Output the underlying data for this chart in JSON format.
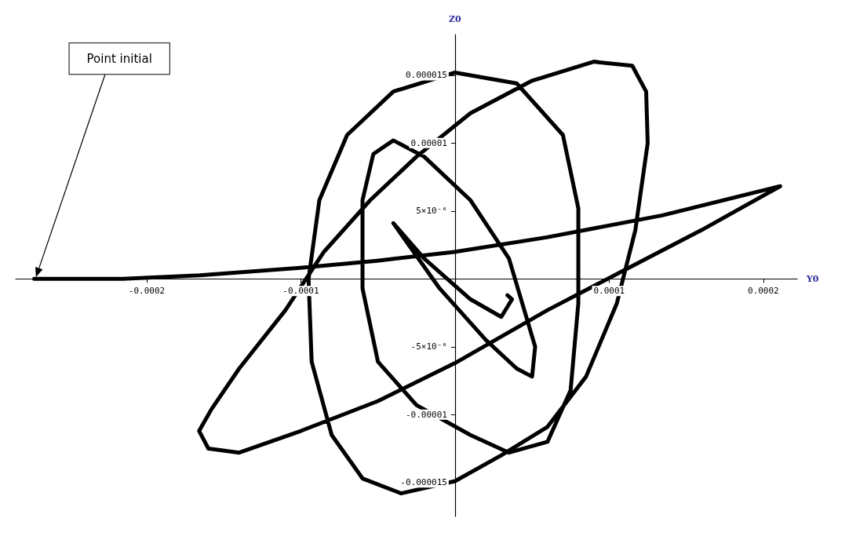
{
  "chart_data": {
    "type": "line",
    "xlabel": "Y0",
    "ylabel": "Z0",
    "x": [
      -0.000273,
      -0.0002155,
      -0.0001655,
      -0.0001005,
      -5.05e-05,
      -5e-07,
      5.95e-05,
      0.0001345,
      0.000211,
      0.00016,
      0.00011,
      6e-05,
      0,
      -5e-05,
      -0.0001,
      -0.00014,
      -0.00016,
      -0.000166,
      -0.000158,
      -0.00014,
      -0.00011,
      -8.5e-05,
      -5.5e-05,
      -2.5e-05,
      1e-05,
      5e-05,
      9e-05,
      0.000115,
      0.000124,
      0.000125,
      0.000117,
      0.000105,
      8.5e-05,
      6e-05,
      3e-05,
      0,
      -3.5e-05,
      -6e-05,
      -8e-05,
      -9.3e-05,
      -9.5e-05,
      -8.8e-05,
      -7e-05,
      -4e-05,
      0,
      4e-05,
      7e-05,
      8e-05,
      8e-05,
      7.5e-05,
      6e-05,
      3.5e-05,
      1e-05,
      -2.5e-05,
      -5e-05,
      -6e-05,
      -6e-05,
      -5.3e-05,
      -4e-05,
      -2e-05,
      1e-05,
      3.5e-05,
      5.2e-05,
      5e-05,
      4e-05,
      2e-05,
      -1e-05,
      -4e-05,
      -2e-05,
      1e-05,
      3e-05,
      3.7e-05,
      3.4e-05
    ],
    "series": [
      {
        "color": "#000000",
        "values": [
          0,
          0,
          2.7e-07,
          8.1e-07,
          1.34e-06,
          1.99e-06,
          3.06e-06,
          4.68e-06,
          6.83e-06,
          3.6e-06,
          6.5e-07,
          -2.3e-06,
          -6.2e-06,
          -9e-06,
          -1.12e-05,
          -1.28e-05,
          -1.25e-05,
          -1.12e-05,
          -9.6e-06,
          -6.6e-06,
          -2.3e-06,
          2e-06,
          5.8e-06,
          9e-06,
          1.22e-05,
          1.46e-05,
          1.6e-05,
          1.57e-05,
          1.38e-05,
          1e-05,
          3.6e-06,
          -1.8e-06,
          -7.2e-06,
          -1.09e-05,
          -1.3e-05,
          -1.49e-05,
          -1.58e-05,
          -1.47e-05,
          -1.15e-05,
          -6.1e-06,
          0,
          5.8e-06,
          1.06e-05,
          1.38e-05,
          1.52e-05,
          1.44e-05,
          1.06e-05,
          5.2e-06,
          -1.8e-06,
          -8.2e-06,
          -1.2e-05,
          -1.28e-05,
          -1.15e-05,
          -9.3e-06,
          -6.1e-06,
          -7e-07,
          5.8e-06,
          9.2e-06,
          1.02e-05,
          9e-06,
          5.8e-06,
          1.5e-06,
          -5e-06,
          -7.2e-06,
          -6.6e-06,
          -4.5e-06,
          -7e-07,
          4.1e-06,
          1.5e-06,
          -1.5e-06,
          -2.8e-06,
          -1.5e-06,
          -1.2e-06
        ]
      }
    ],
    "xlim": [
      -0.000285,
      0.000222
    ],
    "ylim": [
      -1.75e-05,
      1.8e-05
    ],
    "xticks": [
      -0.0002,
      -0.0001,
      0.0001,
      0.0002
    ],
    "yticks": [
      {
        "value": -1.5e-05,
        "label": "-0.000015"
      },
      {
        "value": -1e-05,
        "label": "-0.00001"
      },
      {
        "value": -5e-06,
        "label": "-5×10⁻⁶"
      },
      {
        "value": 5e-06,
        "label": "5×10⁻⁶"
      },
      {
        "value": 1e-05,
        "label": "0.00001"
      },
      {
        "value": 1.5e-05,
        "label": "0.000015"
      }
    ],
    "marker": "none",
    "annotations": [
      "Point initial"
    ]
  }
}
